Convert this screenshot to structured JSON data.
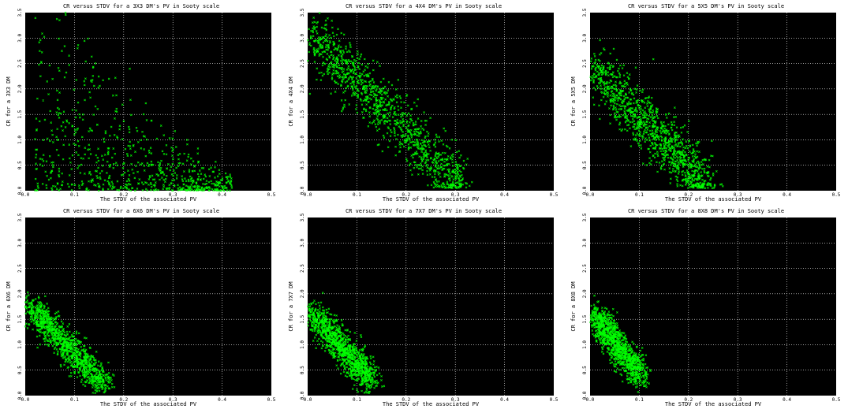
{
  "accent": "#00ff00",
  "chart_data": [
    {
      "type": "scatter",
      "title": "CR versus STDV  for a 3X3 DM's PV in Sooty scale",
      "xlabel": "The STDV of the associated PV",
      "ylabel": "CR for a 3X3 DM",
      "xlim": [
        0,
        0.5
      ],
      "ylim": [
        0,
        3.5
      ],
      "xticks": [
        "0.0",
        "0.1",
        "0.2",
        "0.3",
        "0.4",
        "0.5"
      ],
      "yticks": [
        "0.0",
        "0.5",
        "1.0",
        "1.5",
        "2.0",
        "2.5",
        "3.0",
        "3.5"
      ],
      "grid": true,
      "cluster": {
        "x_range": [
          0.02,
          0.42
        ],
        "y_range": [
          0.0,
          3.5
        ],
        "spread": "wide"
      }
    },
    {
      "type": "scatter",
      "title": "CR versus STDV  for a 4X4 DM's PV in Sooty scale",
      "xlabel": "The STDV of the associated PV",
      "ylabel": "CR for a 4X4 DM",
      "xlim": [
        0,
        0.5
      ],
      "ylim": [
        0,
        3.5
      ],
      "xticks": [
        "0.0",
        "0.1",
        "0.2",
        "0.3",
        "0.4",
        "0.5"
      ],
      "yticks": [
        "0.0",
        "0.5",
        "1.0",
        "1.5",
        "2.0",
        "2.5",
        "3.0",
        "3.5"
      ],
      "grid": true,
      "cluster": {
        "x_range": [
          0.01,
          0.31
        ],
        "y_range": [
          0.1,
          3.0
        ],
        "spread": "medium"
      }
    },
    {
      "type": "scatter",
      "title": "CR versus STDV  for a 5X5 DM's PV in Sooty scale",
      "xlabel": "The STDV of the associated PV",
      "ylabel": "CR for a 5X5 DM",
      "xlim": [
        0,
        0.5
      ],
      "ylim": [
        0,
        3.5
      ],
      "xticks": [
        "0.0",
        "0.1",
        "0.2",
        "0.3",
        "0.4",
        "0.5"
      ],
      "yticks": [
        "0.0",
        "0.5",
        "1.0",
        "1.5",
        "2.0",
        "2.5",
        "3.0",
        "3.5"
      ],
      "grid": true,
      "cluster": {
        "x_range": [
          0.01,
          0.24
        ],
        "y_range": [
          0.1,
          2.3
        ],
        "spread": "medium"
      }
    },
    {
      "type": "scatter",
      "title": "CR versus STDV  for a 6X6 DM's PV in Sooty scale",
      "xlabel": "The STDV of the associated PV",
      "ylabel": "CR for a 6X6 DM",
      "xlim": [
        0,
        0.5
      ],
      "ylim": [
        0,
        3.5
      ],
      "xticks": [
        "0.0",
        "0.1",
        "0.2",
        "0.3",
        "0.4",
        "0.5"
      ],
      "yticks": [
        "0.0",
        "0.5",
        "1.0",
        "1.5",
        "2.0",
        "2.5",
        "3.0",
        "3.5"
      ],
      "grid": true,
      "cluster": {
        "x_range": [
          0.01,
          0.16
        ],
        "y_range": [
          0.2,
          1.75
        ],
        "spread": "tight"
      }
    },
    {
      "type": "scatter",
      "title": "CR versus STDV  for a 7X7 DM's PV in Sooty scale",
      "xlabel": "The STDV of the associated PV",
      "ylabel": "CR for a 7X7 DM",
      "xlim": [
        0,
        0.5
      ],
      "ylim": [
        0,
        3.5
      ],
      "xticks": [
        "0.0",
        "0.1",
        "0.2",
        "0.3",
        "0.4",
        "0.5"
      ],
      "yticks": [
        "0.0",
        "0.5",
        "1.0",
        "1.5",
        "2.0",
        "2.5",
        "3.0",
        "3.5"
      ],
      "grid": true,
      "cluster": {
        "x_range": [
          0.01,
          0.13
        ],
        "y_range": [
          0.3,
          1.6
        ],
        "spread": "tight"
      }
    },
    {
      "type": "scatter",
      "title": "CR versus STDV  for a 8X8 DM's PV in Sooty scale",
      "xlabel": "The STDV of the associated PV",
      "ylabel": "CR for a 8X8 DM",
      "xlim": [
        0,
        0.5
      ],
      "ylim": [
        0,
        3.5
      ],
      "xticks": [
        "0.0",
        "0.1",
        "0.2",
        "0.3",
        "0.4",
        "0.5"
      ],
      "yticks": [
        "0.0",
        "0.5",
        "1.0",
        "1.5",
        "2.0",
        "2.5",
        "3.0",
        "3.5"
      ],
      "grid": true,
      "cluster": {
        "x_range": [
          0.01,
          0.1
        ],
        "y_range": [
          0.4,
          1.6
        ],
        "spread": "tight"
      }
    }
  ]
}
